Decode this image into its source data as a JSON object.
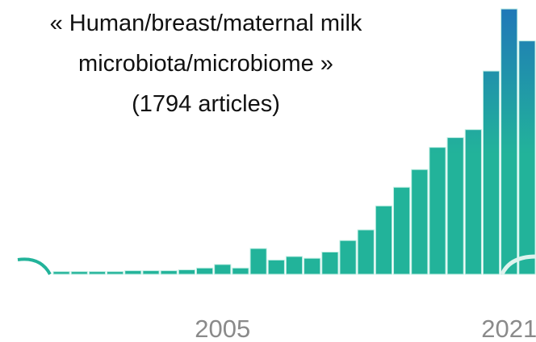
{
  "chart_data": {
    "type": "bar",
    "title_lines": [
      "« Human/breast/maternal milk",
      "microbiota/microbiome »",
      "(1794 articles)"
    ],
    "categories": [
      null,
      null,
      null,
      null,
      null,
      null,
      null,
      null,
      null,
      "2005",
      null,
      null,
      null,
      null,
      null,
      null,
      null,
      null,
      null,
      null,
      null,
      null,
      null,
      null,
      null,
      "2021",
      null
    ],
    "values": [
      3,
      3,
      3,
      3,
      4,
      4,
      4,
      5,
      7,
      11,
      7,
      29,
      16,
      20,
      18,
      25,
      38,
      50,
      77,
      98,
      118,
      143,
      154,
      163,
      229,
      299,
      263
    ],
    "color": "#22b39a",
    "top_color": "#1f78b8",
    "ylim": [
      0,
      300
    ]
  }
}
